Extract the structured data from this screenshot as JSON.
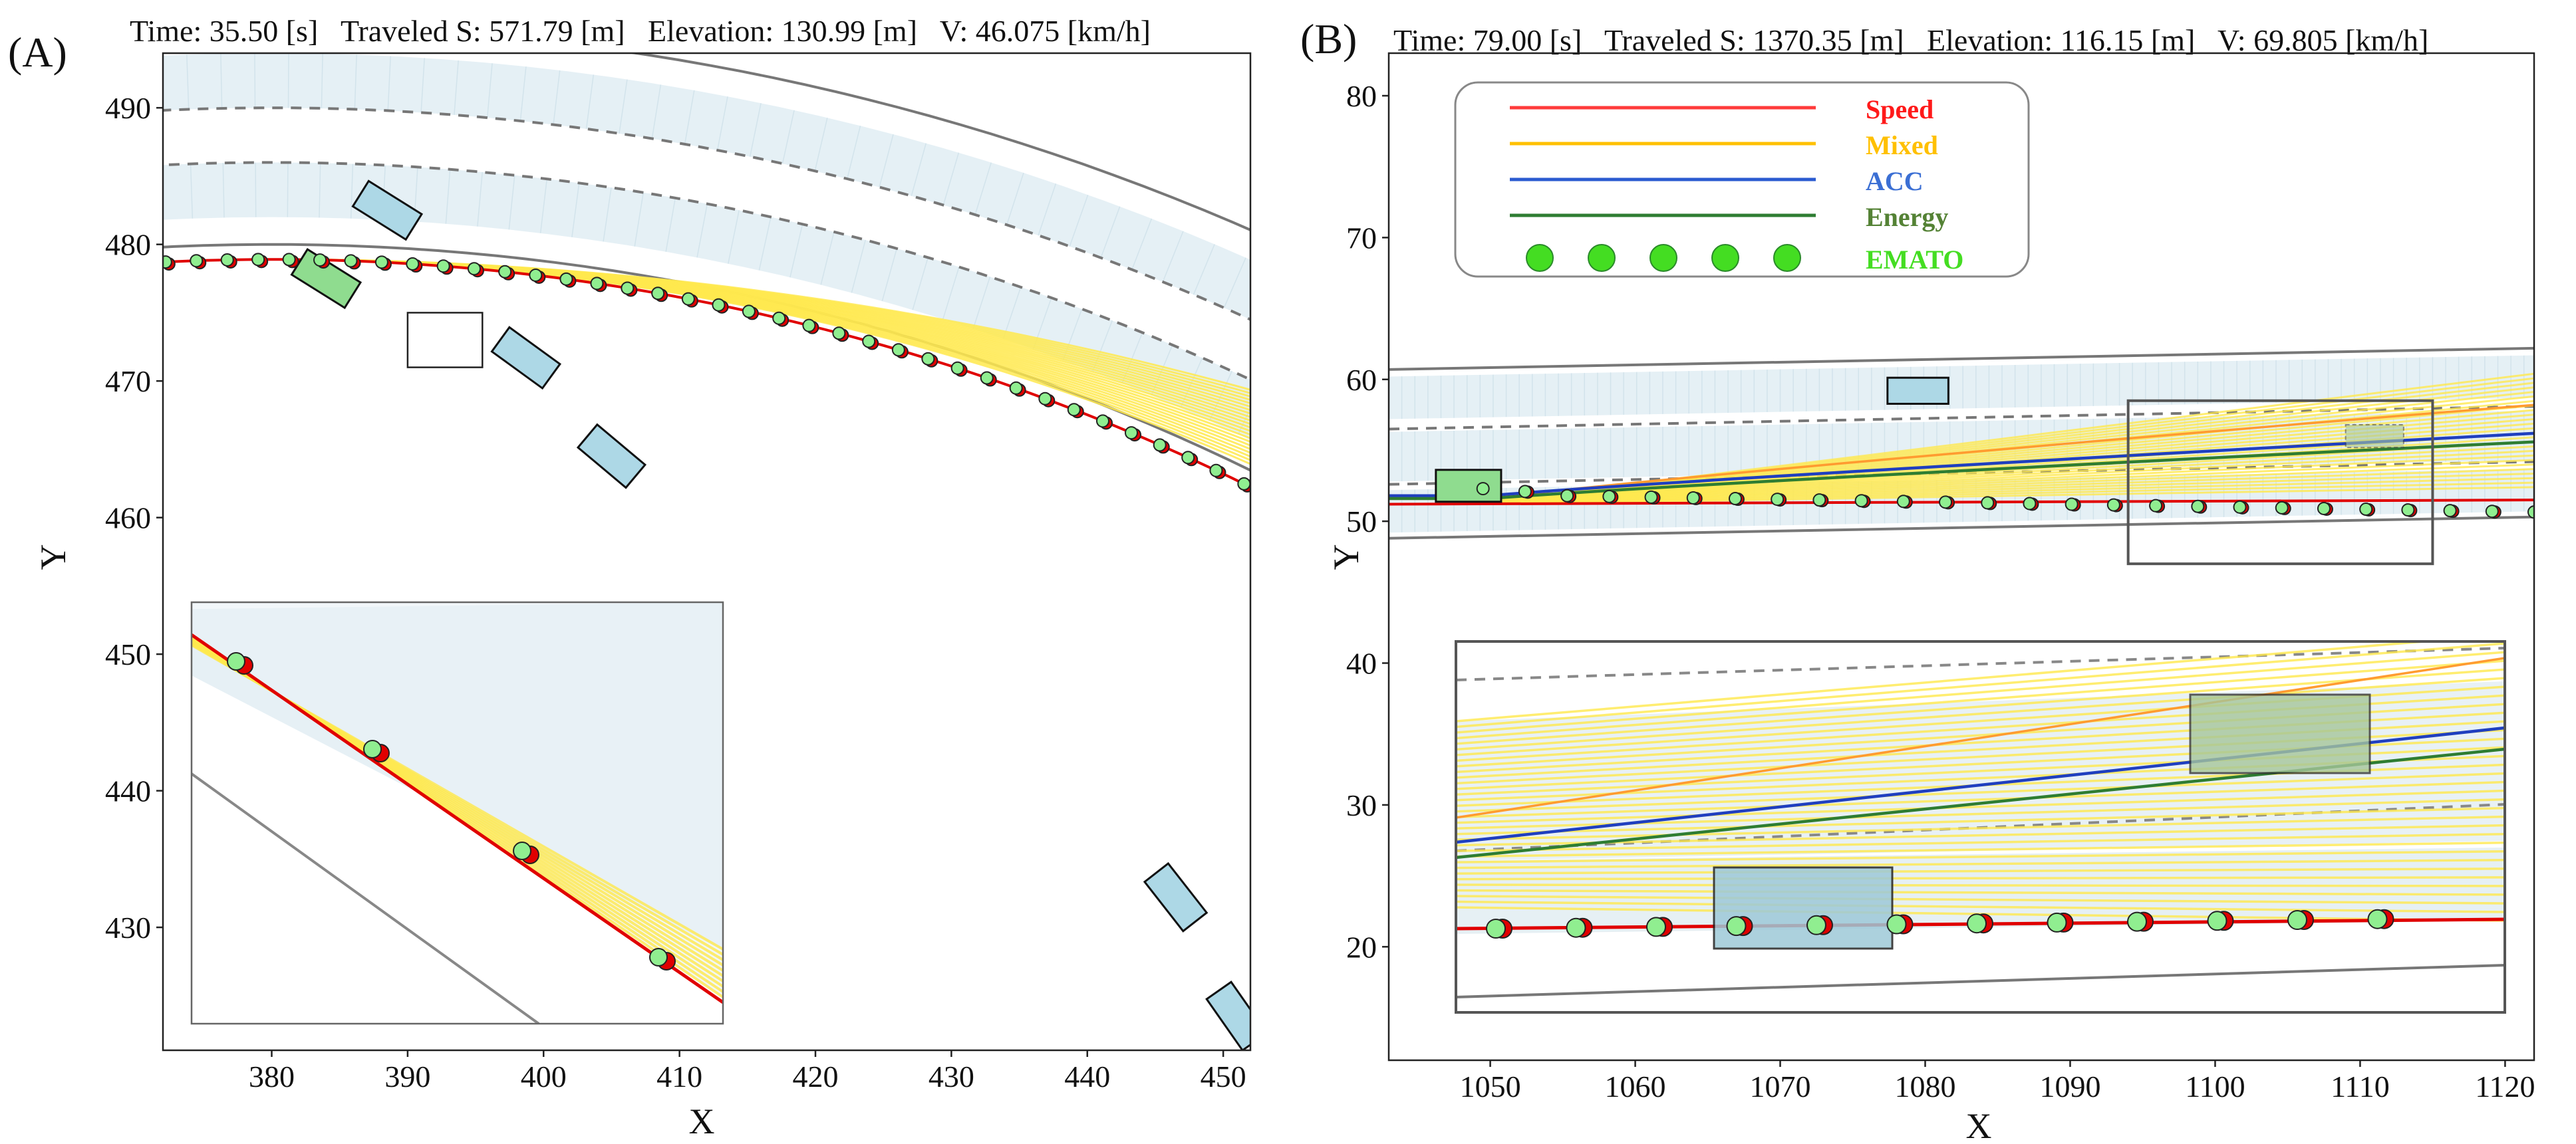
{
  "chart_data": [
    {
      "type": "scatter",
      "panel_label": "(A)",
      "header": "Time: 35.50 [s]   Traveled S: 571.79 [m]   Elevation: 130.99 [m]   V: 46.075 [km/h]",
      "xlabel": "X",
      "ylabel": "Y",
      "xlim": [
        372,
        452
      ],
      "ylim": [
        421,
        494
      ],
      "xticks": [
        380,
        390,
        400,
        410,
        420,
        430,
        440,
        450
      ],
      "yticks": [
        430,
        440,
        450,
        460,
        470,
        480,
        490
      ],
      "road": {
        "shape": "arc",
        "center_x": 380,
        "center_y": 315,
        "lane_radii": [
          167,
          171,
          175,
          179
        ],
        "edge_radii": [
          165,
          181
        ],
        "angle_range_deg": [
          80,
          128
        ]
      },
      "trajectory": {
        "center_x": 380,
        "center_y": 315,
        "radius": 163.9,
        "angle_range_deg": [
          48,
          97.5
        ]
      },
      "vehicles": [
        {
          "x": 384,
          "y": 477.5,
          "w": 4.6,
          "h": 2.2,
          "angle": -32,
          "color": "#8fdc8f",
          "role": "ego"
        },
        {
          "x": 388.5,
          "y": 482.5,
          "w": 4.6,
          "h": 2.2,
          "angle": -32,
          "color": "#add8e6"
        },
        {
          "x": 398.7,
          "y": 471.7,
          "w": 4.6,
          "h": 2.2,
          "angle": -36,
          "color": "#add8e6"
        },
        {
          "x": 405,
          "y": 464.5,
          "w": 4.6,
          "h": 2.2,
          "angle": -40,
          "color": "#add8e6"
        },
        {
          "x": 446.5,
          "y": 432.2,
          "w": 4.6,
          "h": 2.2,
          "angle": -52,
          "color": "#add8e6"
        },
        {
          "x": 451,
          "y": 423.5,
          "w": 4.6,
          "h": 2.2,
          "angle": -55,
          "color": "#add8e6"
        }
      ],
      "zoom_box": {
        "x": [
          390,
          395.5
        ],
        "y": [
          471,
          475
        ]
      },
      "inset": {
        "data_x": [
          386.8,
          393.4
        ],
        "data_y": [
          472.1,
          474.4
        ],
        "points": [
          {
            "x": 387.4,
            "y": 474.2,
            "ego": true
          },
          {
            "x": 387.5,
            "y": 474.15
          },
          {
            "x": 389.3,
            "y": 473.5,
            "ego": true
          },
          {
            "x": 389.4,
            "y": 473.45
          },
          {
            "x": 391.2,
            "y": 472.9,
            "ego": true
          },
          {
            "x": 391.35,
            "y": 472.85
          },
          {
            "x": 392.9,
            "y": 472.4,
            "ego": true
          },
          {
            "x": 393.1,
            "y": 472.35
          }
        ]
      }
    },
    {
      "type": "scatter",
      "panel_label": "(B)",
      "header": "Time: 79.00 [s]   Traveled S: 1370.35 [m]   Elevation: 116.15 [m]   V: 69.805 [km/h]",
      "xlabel": "X",
      "ylabel": "Y",
      "xlim": [
        1043,
        1122
      ],
      "ylim": [
        12,
        83
      ],
      "xticks": [
        1050,
        1060,
        1070,
        1080,
        1090,
        1100,
        1110,
        1120
      ],
      "yticks": [
        20,
        30,
        40,
        50,
        60,
        70,
        80
      ],
      "road": {
        "upper_edge": [
          [
            1043,
            60.7
          ],
          [
            1122,
            62.2
          ]
        ],
        "lower_edge": [
          [
            1043,
            48.8
          ],
          [
            1122,
            50.3
          ]
        ],
        "dashed": [
          [
            [
              1043,
              56.5
            ],
            [
              1122,
              58.1
            ]
          ],
          [
            [
              1043,
              52.6
            ],
            [
              1122,
              54.2
            ]
          ]
        ]
      },
      "trajectory_y": 51.2,
      "ego": {
        "x": 1049.5,
        "y": 52.3
      },
      "ego_points_x": [
        1049.5,
        1052.4,
        1055.3,
        1058.2,
        1061.1,
        1064,
        1066.9,
        1069.8,
        1072.7,
        1075.6,
        1078.5,
        1081.4,
        1084.3,
        1087.2,
        1090.1,
        1093,
        1095.9,
        1098.8,
        1101.7,
        1104.6,
        1107.5,
        1110.4,
        1113.3,
        1116.2,
        1119.1,
        1122
      ],
      "vehicles": [
        {
          "x": 1048.5,
          "y": 52.5,
          "w": 4.5,
          "h": 2.2,
          "angle": 0,
          "color": "#8fdc8f",
          "role": "ego"
        },
        {
          "x": 1079.5,
          "y": 59.2,
          "w": 4.2,
          "h": 1.8,
          "angle": 0,
          "color": "#add8e6"
        }
      ],
      "zoom_box": {
        "x": [
          1094,
          1115
        ],
        "y": [
          47,
          58.5
        ]
      },
      "inset": {
        "data_x": [
          1094,
          1115.5
        ],
        "data_y": [
          47,
          58.5
        ],
        "ego_x": [
          1094.5,
          1096.5,
          1098.3,
          1099.5,
          1100.5,
          1102,
          1103.5,
          1105,
          1107,
          1108.5,
          1110.5,
          1112.5,
          1114.5
        ]
      },
      "legend": {
        "position": "top-left",
        "entries": [
          {
            "label": "Speed",
            "color": "#ff1a1a",
            "line": "#ff3b3b"
          },
          {
            "label": "Mixed",
            "color": "#ffc000",
            "line": "#ffc000"
          },
          {
            "label": "ACC",
            "color": "#3b6fd4",
            "line": "#2b5bd0"
          },
          {
            "label": "Energy",
            "color": "#548235",
            "line": "#2e7d32"
          },
          {
            "label": "EMATO",
            "color": "#44dd22",
            "line": "#44dd22"
          }
        ]
      }
    }
  ]
}
